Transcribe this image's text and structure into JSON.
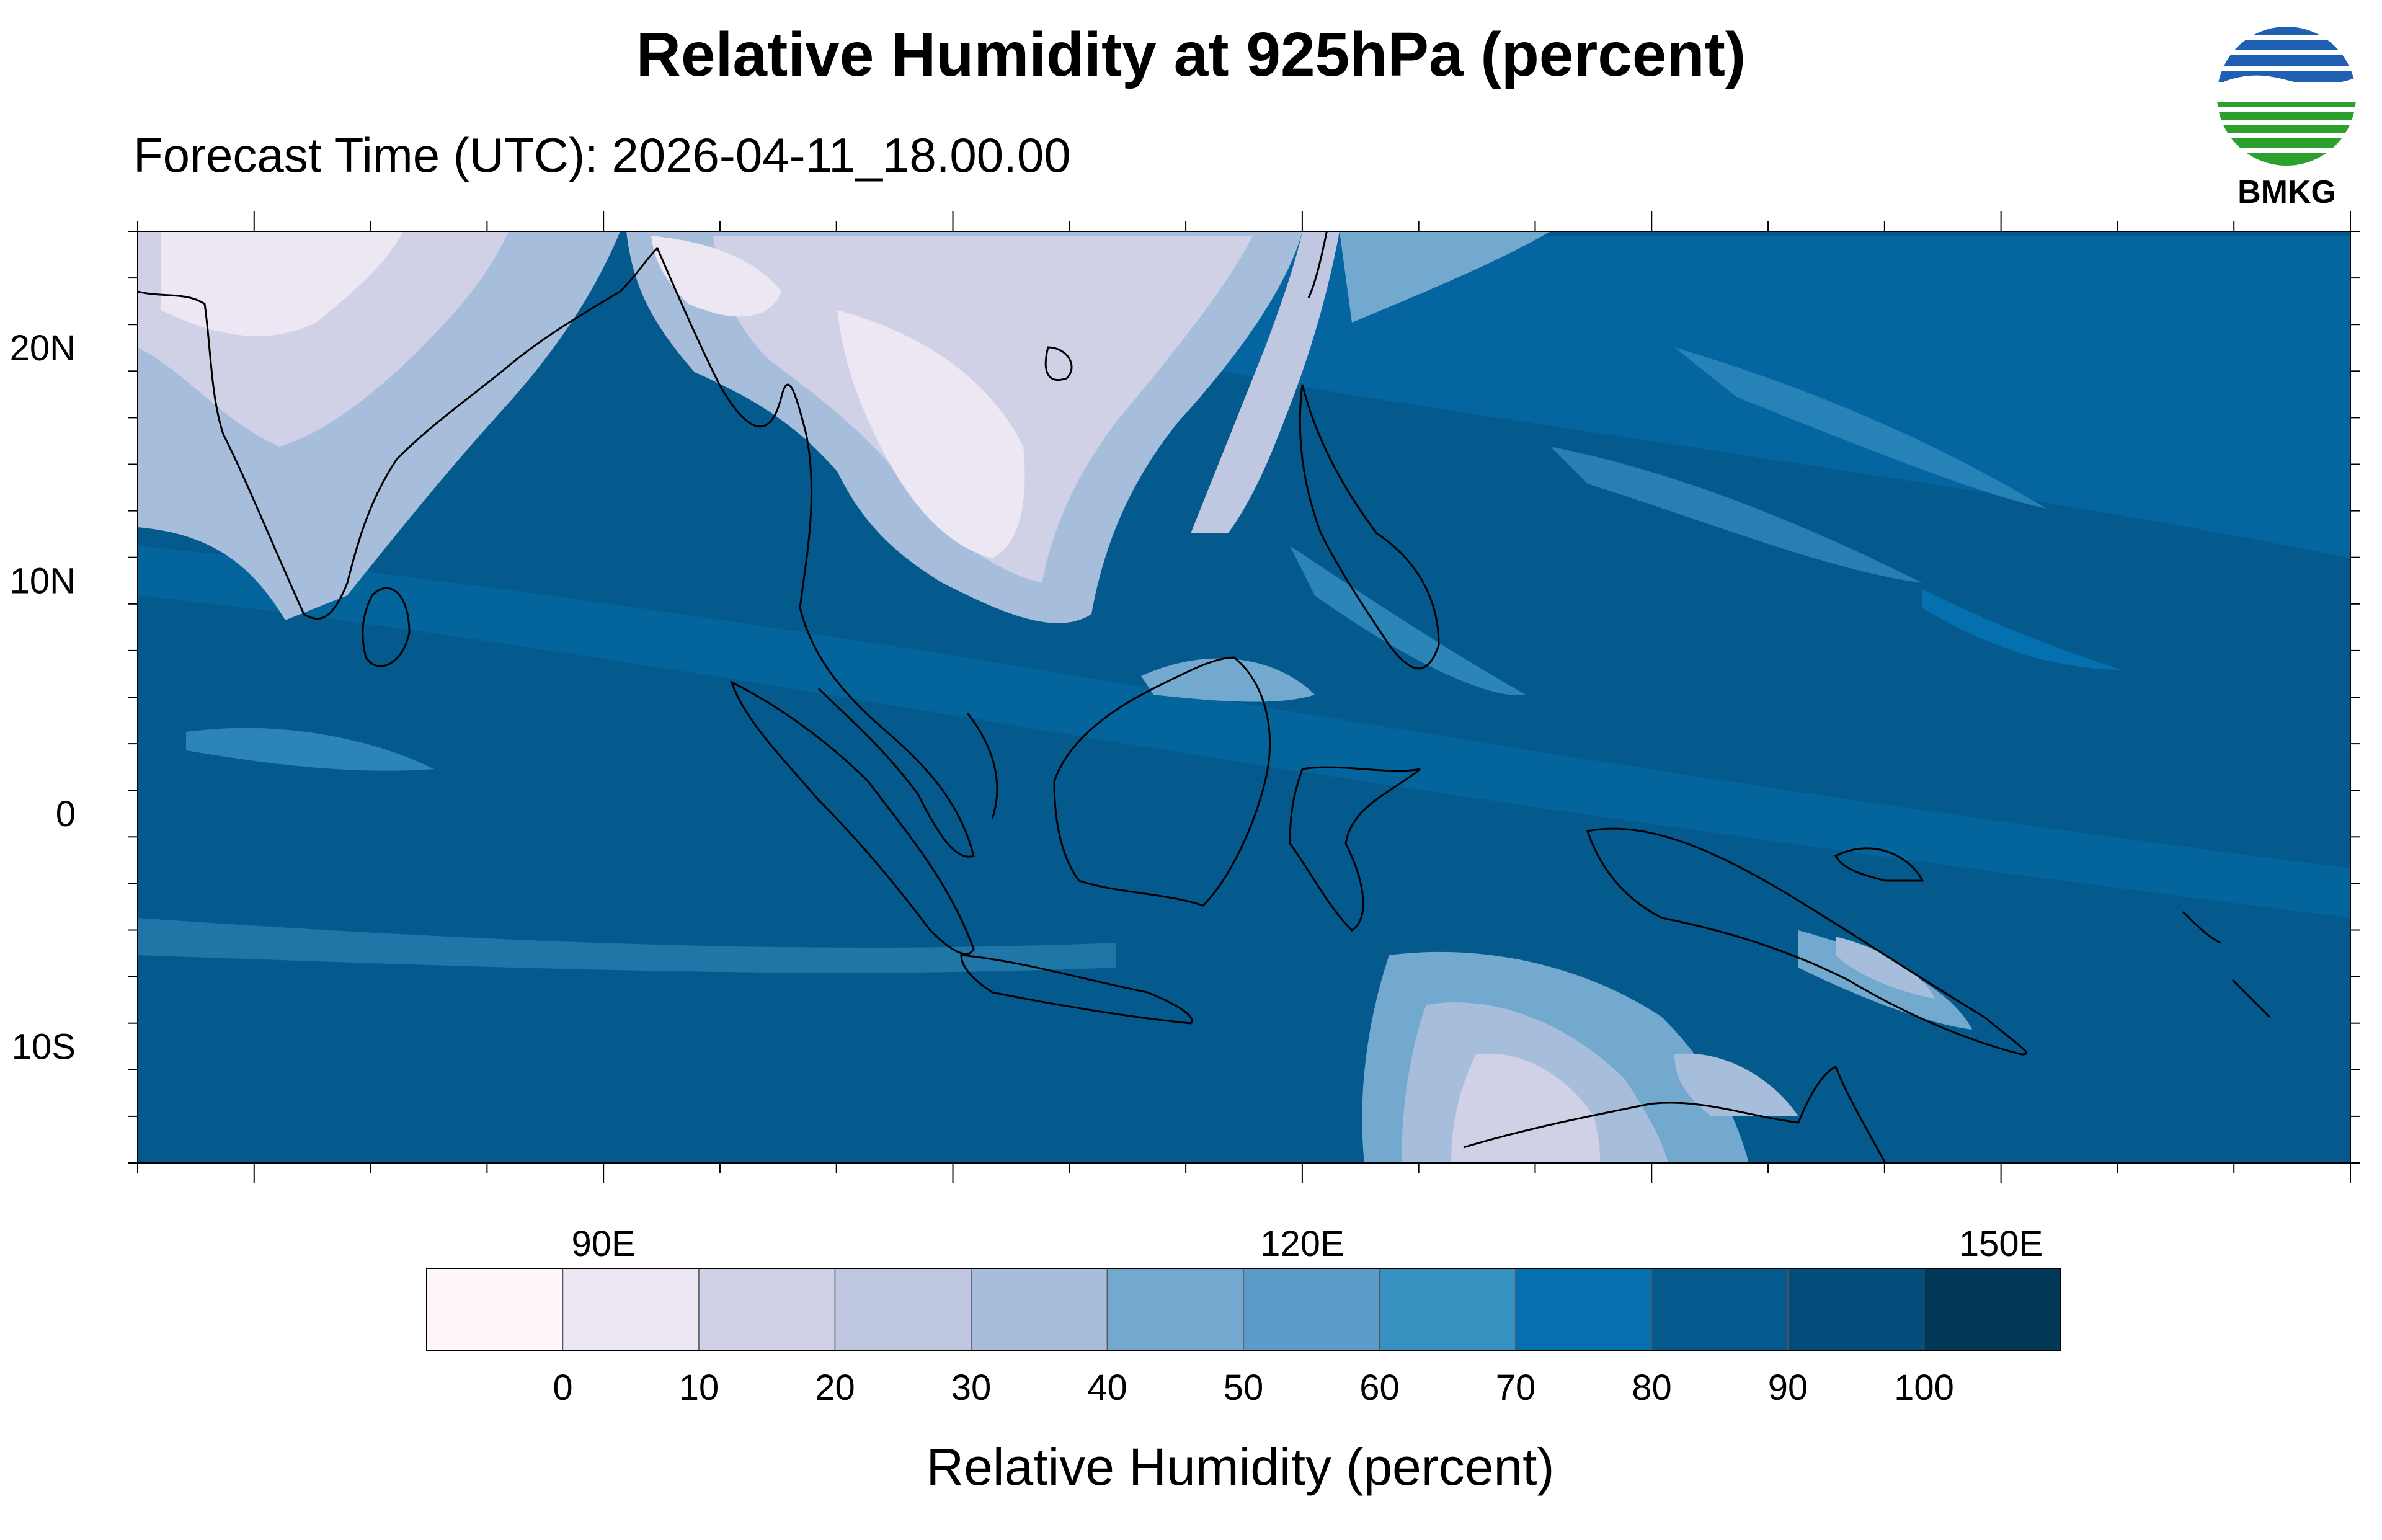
{
  "title": "Relative Humidity at 925hPa (percent)",
  "subtitle": "Forecast Time (UTC): 2026-04-11_18.00.00",
  "logo": {
    "text": "BMKG",
    "icon": "bmkg-logo-icon",
    "colors": [
      "#1f5fb4",
      "#2ca02c"
    ]
  },
  "map": {
    "projection": "cylindrical-equidistant",
    "lon_range": [
      70,
      165
    ],
    "lat_range": [
      -15,
      25
    ],
    "lat_ticks": [
      {
        "value": 20,
        "label": "20N"
      },
      {
        "value": 10,
        "label": "10N"
      },
      {
        "value": 0,
        "label": "0"
      },
      {
        "value": -10,
        "label": "10S"
      }
    ],
    "lon_ticks": [
      {
        "value": 90,
        "label": "90E"
      },
      {
        "value": 120,
        "label": "120E"
      },
      {
        "value": 150,
        "label": "150E"
      }
    ],
    "field": "relative-humidity-925hPa",
    "coastlines": true
  },
  "colorbar": {
    "title": "Relative Humidity (percent)",
    "levels": [
      "0",
      "10",
      "20",
      "30",
      "40",
      "50",
      "60",
      "70",
      "80",
      "90",
      "100"
    ],
    "colors": [
      "#fff7fb",
      "#ece7f2",
      "#d0d1e6",
      "#bfc7e1",
      "#a6bddb",
      "#74a9cf",
      "#5b9bc9",
      "#3690c0",
      "#0570b0",
      "#045a8d",
      "#034e7b",
      "#023858"
    ]
  }
}
